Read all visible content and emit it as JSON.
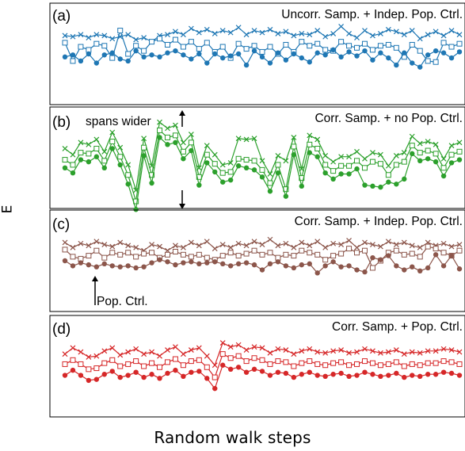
{
  "figure": {
    "ylabel": "E",
    "xlabel": "Random walk steps"
  },
  "chart_data": [
    {
      "type": "line",
      "panel_label": "(a)",
      "title": "Uncorr. Samp. + Indep. Pop. Ctrl.",
      "color": "#1f77b4",
      "x": [
        0,
        1,
        2,
        3,
        4,
        5,
        6,
        7,
        8,
        9,
        10,
        11,
        12,
        13,
        14,
        15,
        16,
        17,
        18,
        19,
        20,
        21,
        22,
        23,
        24,
        25,
        26,
        27,
        28,
        29,
        30,
        31,
        32,
        33,
        34,
        35,
        36,
        37,
        38,
        39,
        40,
        41,
        42,
        43,
        44,
        45,
        46,
        47,
        48,
        49,
        50
      ],
      "xlim": [
        0,
        50
      ],
      "ylim": [
        0,
        10
      ],
      "series": [
        {
          "marker": "x",
          "values": [
            6.8,
            6.7,
            6.9,
            6.6,
            6.9,
            6.8,
            6.5,
            6.7,
            6.9,
            6.4,
            6.6,
            6.2,
            6.8,
            6.9,
            7.2,
            6.9,
            7.5,
            7.1,
            7.4,
            7.0,
            7.3,
            7.1,
            7.6,
            6.9,
            7.3,
            7.1,
            7.4,
            7.0,
            7.2,
            6.8,
            7.0,
            6.9,
            7.3,
            6.7,
            7.0,
            7.7,
            7.0,
            6.6,
            7.3,
            6.8,
            7.0,
            7.4,
            7.2,
            6.9,
            7.3,
            6.5,
            6.9,
            7.2,
            6.8,
            7.3,
            6.9
          ]
        },
        {
          "marker": "square",
          "values": [
            6.1,
            4.3,
            5.7,
            5.4,
            6.0,
            5.8,
            4.6,
            7.3,
            5.0,
            5.8,
            5.3,
            6.2,
            6.5,
            5.9,
            6.4,
            5.7,
            6.2,
            5.5,
            6.1,
            5.2,
            5.7,
            4.6,
            6.0,
            5.5,
            5.8,
            5.2,
            5.7,
            5.0,
            5.9,
            5.2,
            6.2,
            5.8,
            6.0,
            5.4,
            5.3,
            6.2,
            5.8,
            5.6,
            6.0,
            5.4,
            5.8,
            5.9,
            5.6,
            4.7,
            5.9,
            5.3,
            4.3,
            4.2,
            6.1,
            5.7,
            6.0
          ]
        },
        {
          "marker": "circle",
          "values": [
            4.7,
            4.9,
            4.3,
            5.0,
            4.1,
            4.9,
            5.1,
            4.5,
            4.3,
            5.3,
            4.7,
            4.9,
            4.7,
            5.1,
            5.3,
            4.9,
            4.5,
            5.0,
            4.1,
            5.0,
            4.6,
            4.8,
            5.0,
            3.9,
            5.3,
            4.7,
            4.1,
            5.1,
            4.4,
            5.0,
            4.6,
            4.2,
            5.1,
            4.9,
            5.4,
            4.7,
            5.2,
            4.8,
            5.3,
            4.4,
            5.1,
            4.6,
            3.9,
            5.1,
            4.1,
            3.7,
            4.9,
            5.3,
            5.1,
            4.6,
            5.2
          ]
        }
      ]
    },
    {
      "type": "line",
      "panel_label": "(b)",
      "title": "Corr. Samp. + no Pop. Ctrl.",
      "annotation": "spans wider",
      "color": "#2ca02c",
      "x": [
        0,
        1,
        2,
        3,
        4,
        5,
        6,
        7,
        8,
        9,
        10,
        11,
        12,
        13,
        14,
        15,
        16,
        17,
        18,
        19,
        20,
        21,
        22,
        23,
        24,
        25,
        26,
        27,
        28,
        29,
        30,
        31,
        32,
        33,
        34,
        35,
        36,
        37,
        38,
        39,
        40,
        41,
        42,
        43,
        44,
        45,
        46,
        47,
        48,
        49,
        50
      ],
      "xlim": [
        0,
        50
      ],
      "ylim": [
        0,
        10
      ],
      "series": [
        {
          "marker": "x",
          "values": [
            5.9,
            5.3,
            6.5,
            6.3,
            6.8,
            5.6,
            7.5,
            6.0,
            4.3,
            1.8,
            6.9,
            4.2,
            8.5,
            7.9,
            8.2,
            6.5,
            7.3,
            4.0,
            6.2,
            5.3,
            4.3,
            4.5,
            6.9,
            6.8,
            6.9,
            4.7,
            3.4,
            5.2,
            4.7,
            7.0,
            3.9,
            7.2,
            6.8,
            5.2,
            4.6,
            5.1,
            5.1,
            5.6,
            4.9,
            5.5,
            5.3,
            4.2,
            5.2,
            5.5,
            7.1,
            6.4,
            6.6,
            6.3,
            4.9,
            6.2,
            6.5
          ]
        },
        {
          "marker": "square",
          "values": [
            4.8,
            4.3,
            5.5,
            5.4,
            5.9,
            4.7,
            6.6,
            5.1,
            3.3,
            0.7,
            6.0,
            3.3,
            7.7,
            7.0,
            7.2,
            5.6,
            6.5,
            3.1,
            5.3,
            4.4,
            3.5,
            3.6,
            4.9,
            4.8,
            4.7,
            3.8,
            2.5,
            4.3,
            1.9,
            6.1,
            3.0,
            6.3,
            5.9,
            4.3,
            3.7,
            4.2,
            4.2,
            4.7,
            4.0,
            4.6,
            4.4,
            3.3,
            4.3,
            4.6,
            6.2,
            5.5,
            5.7,
            5.4,
            4.0,
            5.3,
            5.6
          ]
        },
        {
          "marker": "circle",
          "values": [
            4.0,
            3.5,
            4.8,
            4.6,
            5.1,
            4.0,
            5.9,
            4.3,
            2.4,
            -0.1,
            5.2,
            2.5,
            7.0,
            6.3,
            6.5,
            4.9,
            5.7,
            2.3,
            4.5,
            3.6,
            2.6,
            2.8,
            4.2,
            4.0,
            3.8,
            3.1,
            1.7,
            3.5,
            1.2,
            5.3,
            2.2,
            5.5,
            5.1,
            3.5,
            2.9,
            3.4,
            3.4,
            3.9,
            2.3,
            2.2,
            2.1,
            2.6,
            2.4,
            2.9,
            5.4,
            4.7,
            4.9,
            4.6,
            3.2,
            4.5,
            4.8
          ]
        }
      ]
    },
    {
      "type": "line",
      "panel_label": "(c)",
      "title": "Corr. Samp. + Indep. Pop. Ctrl.",
      "annotation": "Pop. Ctrl.",
      "color": "#8c564b",
      "x": [
        0,
        1,
        2,
        3,
        4,
        5,
        6,
        7,
        8,
        9,
        10,
        11,
        12,
        13,
        14,
        15,
        16,
        17,
        18,
        19,
        20,
        21,
        22,
        23,
        24,
        25,
        26,
        27,
        28,
        29,
        30,
        31,
        32,
        33,
        34,
        35,
        36,
        37,
        38,
        39,
        40,
        41,
        42,
        43,
        44,
        45,
        46,
        47,
        48,
        49,
        50
      ],
      "xlim": [
        0,
        50
      ],
      "ylim": [
        0,
        10
      ],
      "series": [
        {
          "marker": "x",
          "values": [
            6.8,
            6.3,
            6.7,
            6.5,
            6.9,
            6.6,
            6.4,
            6.8,
            6.5,
            6.3,
            6.0,
            6.6,
            6.4,
            6.0,
            6.5,
            6.3,
            6.8,
            6.5,
            6.9,
            6.2,
            6.6,
            6.3,
            6.7,
            6.5,
            6.9,
            6.6,
            7.1,
            6.5,
            6.7,
            6.3,
            6.8,
            6.5,
            6.9,
            6.3,
            6.7,
            6.6,
            7.0,
            6.3,
            6.8,
            6.6,
            6.4,
            6.9,
            6.6,
            6.8,
            6.5,
            6.3,
            6.8,
            6.5,
            6.7,
            6.4,
            6.6
          ]
        },
        {
          "marker": "square",
          "values": [
            6.1,
            5.4,
            5.2,
            5.5,
            6.0,
            5.3,
            5.8,
            5.6,
            5.8,
            5.4,
            5.7,
            5.8,
            5.3,
            5.6,
            5.9,
            5.6,
            5.4,
            5.6,
            5.3,
            5.1,
            5.5,
            5.8,
            5.5,
            5.7,
            6.0,
            5.6,
            5.8,
            5.3,
            5.6,
            5.5,
            6.0,
            5.8,
            5.6,
            5.1,
            5.5,
            5.7,
            6.2,
            5.8,
            6.0,
            4.3,
            5.0,
            5.8,
            6.0,
            5.6,
            5.7,
            5.4,
            6.4,
            6.2,
            5.8,
            5.5,
            6.0
          ]
        },
        {
          "marker": "circle",
          "values": [
            5.0,
            4.5,
            4.8,
            4.6,
            4.4,
            4.7,
            4.5,
            4.4,
            4.5,
            4.3,
            4.4,
            4.8,
            5.1,
            4.9,
            4.6,
            4.8,
            4.9,
            4.7,
            4.8,
            4.9,
            4.7,
            4.5,
            4.7,
            4.8,
            4.6,
            4.1,
            4.7,
            4.9,
            4.5,
            4.3,
            4.6,
            4.7,
            3.8,
            4.5,
            4.9,
            4.4,
            4.5,
            4.1,
            3.9,
            5.3,
            5.1,
            5.5,
            4.5,
            4.1,
            4.4,
            4.0,
            4.3,
            5.6,
            4.5,
            5.5,
            4.2
          ]
        }
      ]
    },
    {
      "type": "line",
      "panel_label": "(d)",
      "title": "Corr. Samp. + Pop. Ctrl.",
      "color": "#d62728",
      "x": [
        0,
        1,
        2,
        3,
        4,
        5,
        6,
        7,
        8,
        9,
        10,
        11,
        12,
        13,
        14,
        15,
        16,
        17,
        18,
        19,
        20,
        21,
        22,
        23,
        24,
        25,
        26,
        27,
        28,
        29,
        30,
        31,
        32,
        33,
        34,
        35,
        36,
        37,
        38,
        39,
        40,
        41,
        42,
        43,
        44,
        45,
        46,
        47,
        48,
        49,
        50
      ],
      "xlim": [
        0,
        50
      ],
      "ylim": [
        0,
        10
      ],
      "series": [
        {
          "marker": "x",
          "values": [
            6.2,
            6.8,
            6.4,
            5.9,
            6.0,
            6.5,
            6.8,
            6.1,
            6.4,
            6.7,
            6.2,
            6.4,
            6.0,
            6.6,
            6.9,
            6.2,
            6.6,
            6.8,
            6.0,
            5.1,
            7.3,
            6.9,
            7.1,
            6.6,
            6.9,
            6.8,
            6.3,
            6.7,
            6.6,
            6.2,
            6.5,
            6.7,
            6.4,
            6.3,
            6.5,
            6.6,
            6.3,
            6.4,
            6.7,
            6.5,
            6.3,
            6.4,
            6.6,
            6.2,
            6.4,
            6.3,
            6.5,
            6.5,
            6.7,
            6.6,
            6.4
          ]
        },
        {
          "marker": "square",
          "values": [
            5.2,
            5.6,
            5.2,
            4.7,
            4.8,
            5.3,
            5.6,
            5.0,
            5.2,
            5.5,
            5.0,
            5.3,
            4.9,
            5.4,
            5.7,
            5.1,
            5.5,
            5.6,
            4.9,
            3.9,
            6.2,
            5.8,
            6.0,
            5.5,
            5.8,
            5.6,
            5.2,
            5.5,
            5.4,
            5.0,
            5.3,
            5.5,
            5.2,
            5.1,
            5.3,
            5.4,
            5.1,
            5.2,
            5.5,
            5.3,
            5.1,
            5.2,
            5.4,
            5.0,
            5.2,
            5.1,
            5.3,
            5.3,
            5.5,
            5.4,
            5.2
          ]
        },
        {
          "marker": "circle",
          "values": [
            4.1,
            4.6,
            4.1,
            3.6,
            3.7,
            4.2,
            4.5,
            3.9,
            4.1,
            4.4,
            3.9,
            4.2,
            3.8,
            4.3,
            4.6,
            4.0,
            4.4,
            4.5,
            3.8,
            2.8,
            5.1,
            4.7,
            4.9,
            4.4,
            4.7,
            4.5,
            4.1,
            4.4,
            4.3,
            3.9,
            4.2,
            4.4,
            4.1,
            4.0,
            4.2,
            4.3,
            4.0,
            4.1,
            4.4,
            4.2,
            4.0,
            4.1,
            4.3,
            3.9,
            4.1,
            4.0,
            4.2,
            4.2,
            4.4,
            4.3,
            4.1
          ]
        }
      ]
    }
  ]
}
